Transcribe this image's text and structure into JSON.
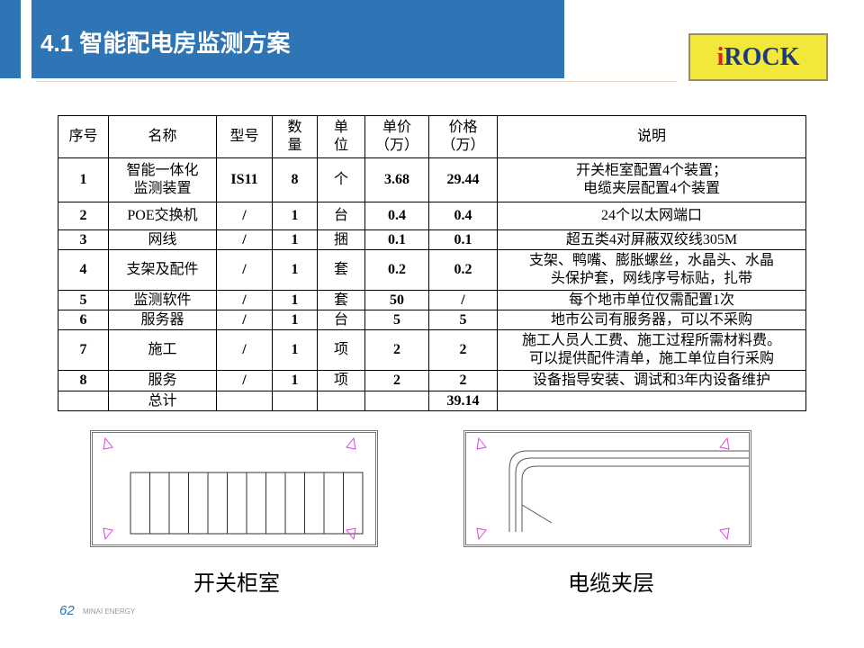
{
  "header": {
    "title": "4.1 智能配电房监测方案",
    "logo_i": "i",
    "logo_rest": "ROCK"
  },
  "table": {
    "headers": [
      "序号",
      "名称",
      "型号",
      "数\n量",
      "单\n位",
      "单价\n（万）",
      "价格\n（万）",
      "说明"
    ],
    "rows": [
      [
        "1",
        "智能一体化\n监测装置",
        "IS11",
        "8",
        "个",
        "3.68",
        "29.44",
        "开关柜室配置4个装置；\n电缆夹层配置4个装置"
      ],
      [
        "2",
        "POE交换机",
        "/",
        "1",
        "台",
        "0.4",
        "0.4",
        "24个以太网端口"
      ],
      [
        "3",
        "网线",
        "/",
        "1",
        "捆",
        "0.1",
        "0.1",
        "超五类4对屏蔽双绞线305M"
      ],
      [
        "4",
        "支架及配件",
        "/",
        "1",
        "套",
        "0.2",
        "0.2",
        "支架、鸭嘴、膨胀螺丝，水晶头、水晶\n头保护套，网线序号标贴，扎带"
      ],
      [
        "5",
        "监测软件",
        "/",
        "1",
        "套",
        "50",
        "/",
        "每个地市单位仅需配置1次"
      ],
      [
        "6",
        "服务器",
        "/",
        "1",
        "台",
        "5",
        "5",
        "地市公司有服务器，可以不采购"
      ],
      [
        "7",
        "施工",
        "/",
        "1",
        "项",
        "2",
        "2",
        "施工人员人工费、施工过程所需材料费。\n可以提供配件清单，施工单位自行采购"
      ],
      [
        "8",
        "服务",
        "/",
        "1",
        "项",
        "2",
        "2",
        "设备指导安装、调试和3年内设备维护"
      ],
      [
        "",
        "总计",
        "",
        "",
        "",
        "",
        "39.14",
        ""
      ]
    ]
  },
  "drawings": {
    "left_caption": "开关柜室",
    "right_caption": "电缆夹层"
  },
  "footer": {
    "page": "62",
    "brand": "MINAI ENERGY"
  },
  "colors": {
    "accent": "#2e75b6",
    "logo_bg": "#f2e83a"
  }
}
